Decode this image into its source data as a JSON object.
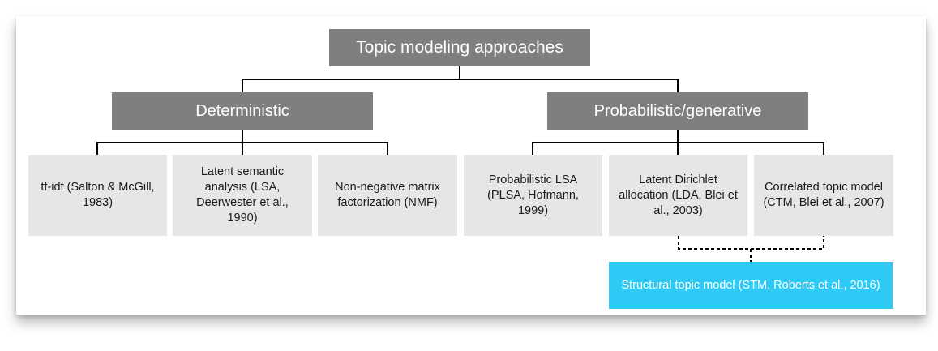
{
  "diagram": {
    "root": {
      "label": "Topic modeling approaches"
    },
    "categories": [
      {
        "label": "Deterministic"
      },
      {
        "label": "Probabilistic/generative"
      }
    ],
    "methods": [
      {
        "label": "tf-idf (Salton & McGill, 1983)"
      },
      {
        "label": "Latent semantic analysis (LSA, Deerwester et al., 1990)"
      },
      {
        "label": "Non-negative matrix factorization (NMF)"
      },
      {
        "label": "Probabilistic LSA (PLSA, Hofmann, 1999)"
      },
      {
        "label": "Latent Dirichlet allocation (LDA, Blei et al., 2003)"
      },
      {
        "label": "Correlated topic model (CTM, Blei et al., 2007)"
      }
    ],
    "extension": {
      "label": "Structural topic model (STM, Roberts et al., 2016)"
    },
    "colors": {
      "dark_box": "#7f7f7f",
      "light_box": "#e7e6e6",
      "highlight_box": "#2ec9f4",
      "connector": "#000000"
    }
  }
}
